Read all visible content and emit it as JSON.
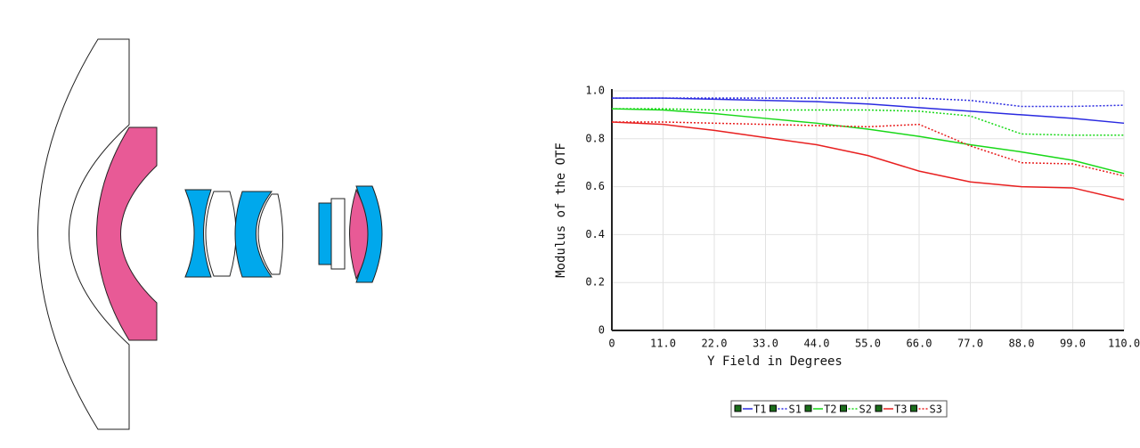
{
  "chart_data": {
    "type": "line",
    "xlabel": "Y Field in Degrees",
    "ylabel": "Modulus of the OTF",
    "x": [
      0,
      11,
      22,
      33,
      44,
      55,
      66,
      77,
      88,
      99,
      110
    ],
    "xlim": [
      0,
      110
    ],
    "xticks": [
      0,
      {
        "value": 11,
        "label": "11.0"
      },
      {
        "value": 22,
        "label": "22.0"
      },
      {
        "value": 33,
        "label": "33.0"
      },
      {
        "value": 44,
        "label": "44.0"
      },
      {
        "value": 55,
        "label": "55.0"
      },
      {
        "value": 66,
        "label": "66.0"
      },
      {
        "value": 77,
        "label": "77.0"
      },
      {
        "value": 88,
        "label": "88.0"
      },
      {
        "value": 99,
        "label": "99.0"
      },
      {
        "value": 110,
        "label": "110.0"
      }
    ],
    "ylim": [
      0,
      1
    ],
    "yticks": [
      0,
      0.2,
      0.4,
      0.6,
      0.8,
      {
        "value": 1,
        "label": "1.0"
      }
    ],
    "grid": true,
    "legend": "bottom",
    "series": [
      {
        "name": "T1",
        "color": "#2a2ae0",
        "dash": false,
        "values": [
          0.97,
          0.97,
          0.965,
          0.96,
          0.955,
          0.945,
          0.93,
          0.915,
          0.9,
          0.885,
          0.865
        ]
      },
      {
        "name": "S1",
        "color": "#2a2ae0",
        "dash": true,
        "values": [
          0.97,
          0.97,
          0.97,
          0.97,
          0.97,
          0.97,
          0.97,
          0.96,
          0.935,
          0.935,
          0.94
        ]
      },
      {
        "name": "T2",
        "color": "#18d818",
        "dash": false,
        "values": [
          0.925,
          0.92,
          0.905,
          0.885,
          0.865,
          0.84,
          0.81,
          0.775,
          0.745,
          0.71,
          0.655
        ]
      },
      {
        "name": "S2",
        "color": "#18d818",
        "dash": true,
        "values": [
          0.925,
          0.925,
          0.92,
          0.92,
          0.92,
          0.92,
          0.915,
          0.895,
          0.82,
          0.815,
          0.815
        ]
      },
      {
        "name": "T3",
        "color": "#e82020",
        "dash": false,
        "values": [
          0.87,
          0.86,
          0.835,
          0.805,
          0.775,
          0.73,
          0.665,
          0.62,
          0.6,
          0.595,
          0.545
        ]
      },
      {
        "name": "S3",
        "color": "#e82020",
        "dash": true,
        "values": [
          0.87,
          0.87,
          0.865,
          0.86,
          0.855,
          0.85,
          0.86,
          0.77,
          0.7,
          0.695,
          0.645
        ]
      }
    ]
  }
}
